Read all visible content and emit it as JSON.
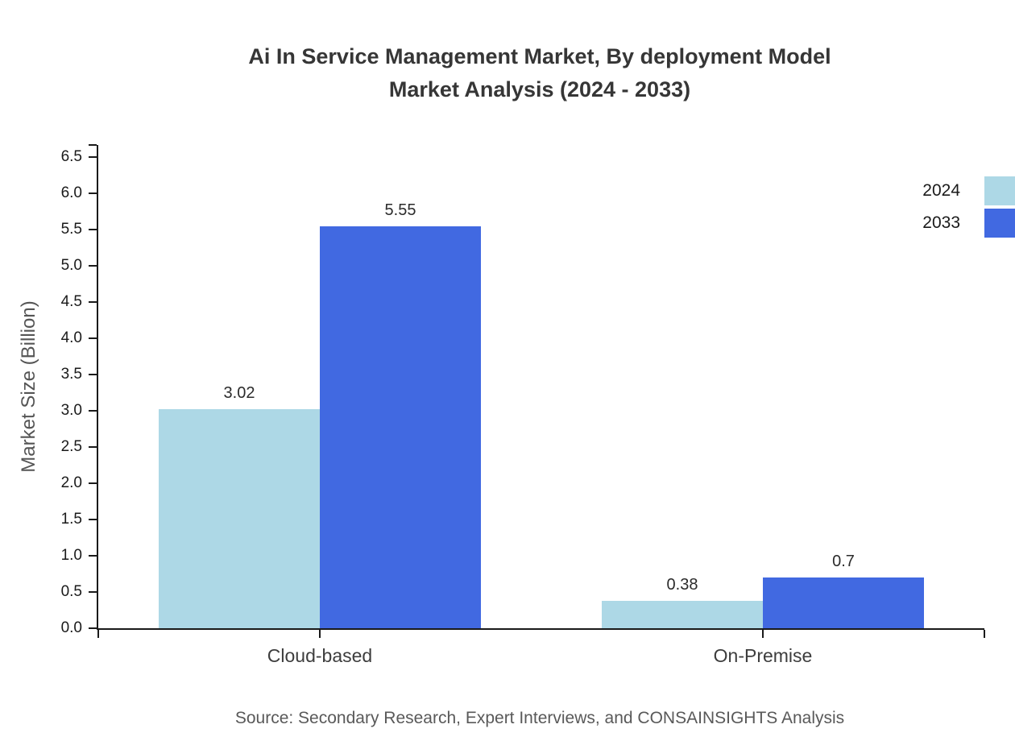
{
  "chart_data": {
    "type": "bar",
    "title_lines": [
      "Ai In Service Management Market, By deployment Model",
      "Market Analysis (2024 - 2033)"
    ],
    "categories": [
      "Cloud-based",
      "On-Premise"
    ],
    "series": [
      {
        "name": "2024",
        "color": "#add8e6",
        "values": [
          3.02,
          0.38
        ],
        "labels": [
          "3.02",
          "0.38"
        ]
      },
      {
        "name": "2033",
        "color": "#4169e1",
        "values": [
          5.55,
          0.7
        ],
        "labels": [
          "5.55",
          "0.7"
        ]
      }
    ],
    "xlabel": "",
    "ylabel": "Market Size (Billion)",
    "ylim": [
      0,
      6.67
    ],
    "yticks": [
      "0.0",
      "0.5",
      "1.0",
      "1.5",
      "2.0",
      "2.5",
      "3.0",
      "3.5",
      "4.0",
      "4.5",
      "5.0",
      "5.5",
      "6.0",
      "6.5"
    ],
    "grid": false,
    "legend_position": "top-right",
    "source": "Source: Secondary Research, Expert Interviews, and CONSAINSIGHTS Analysis"
  }
}
